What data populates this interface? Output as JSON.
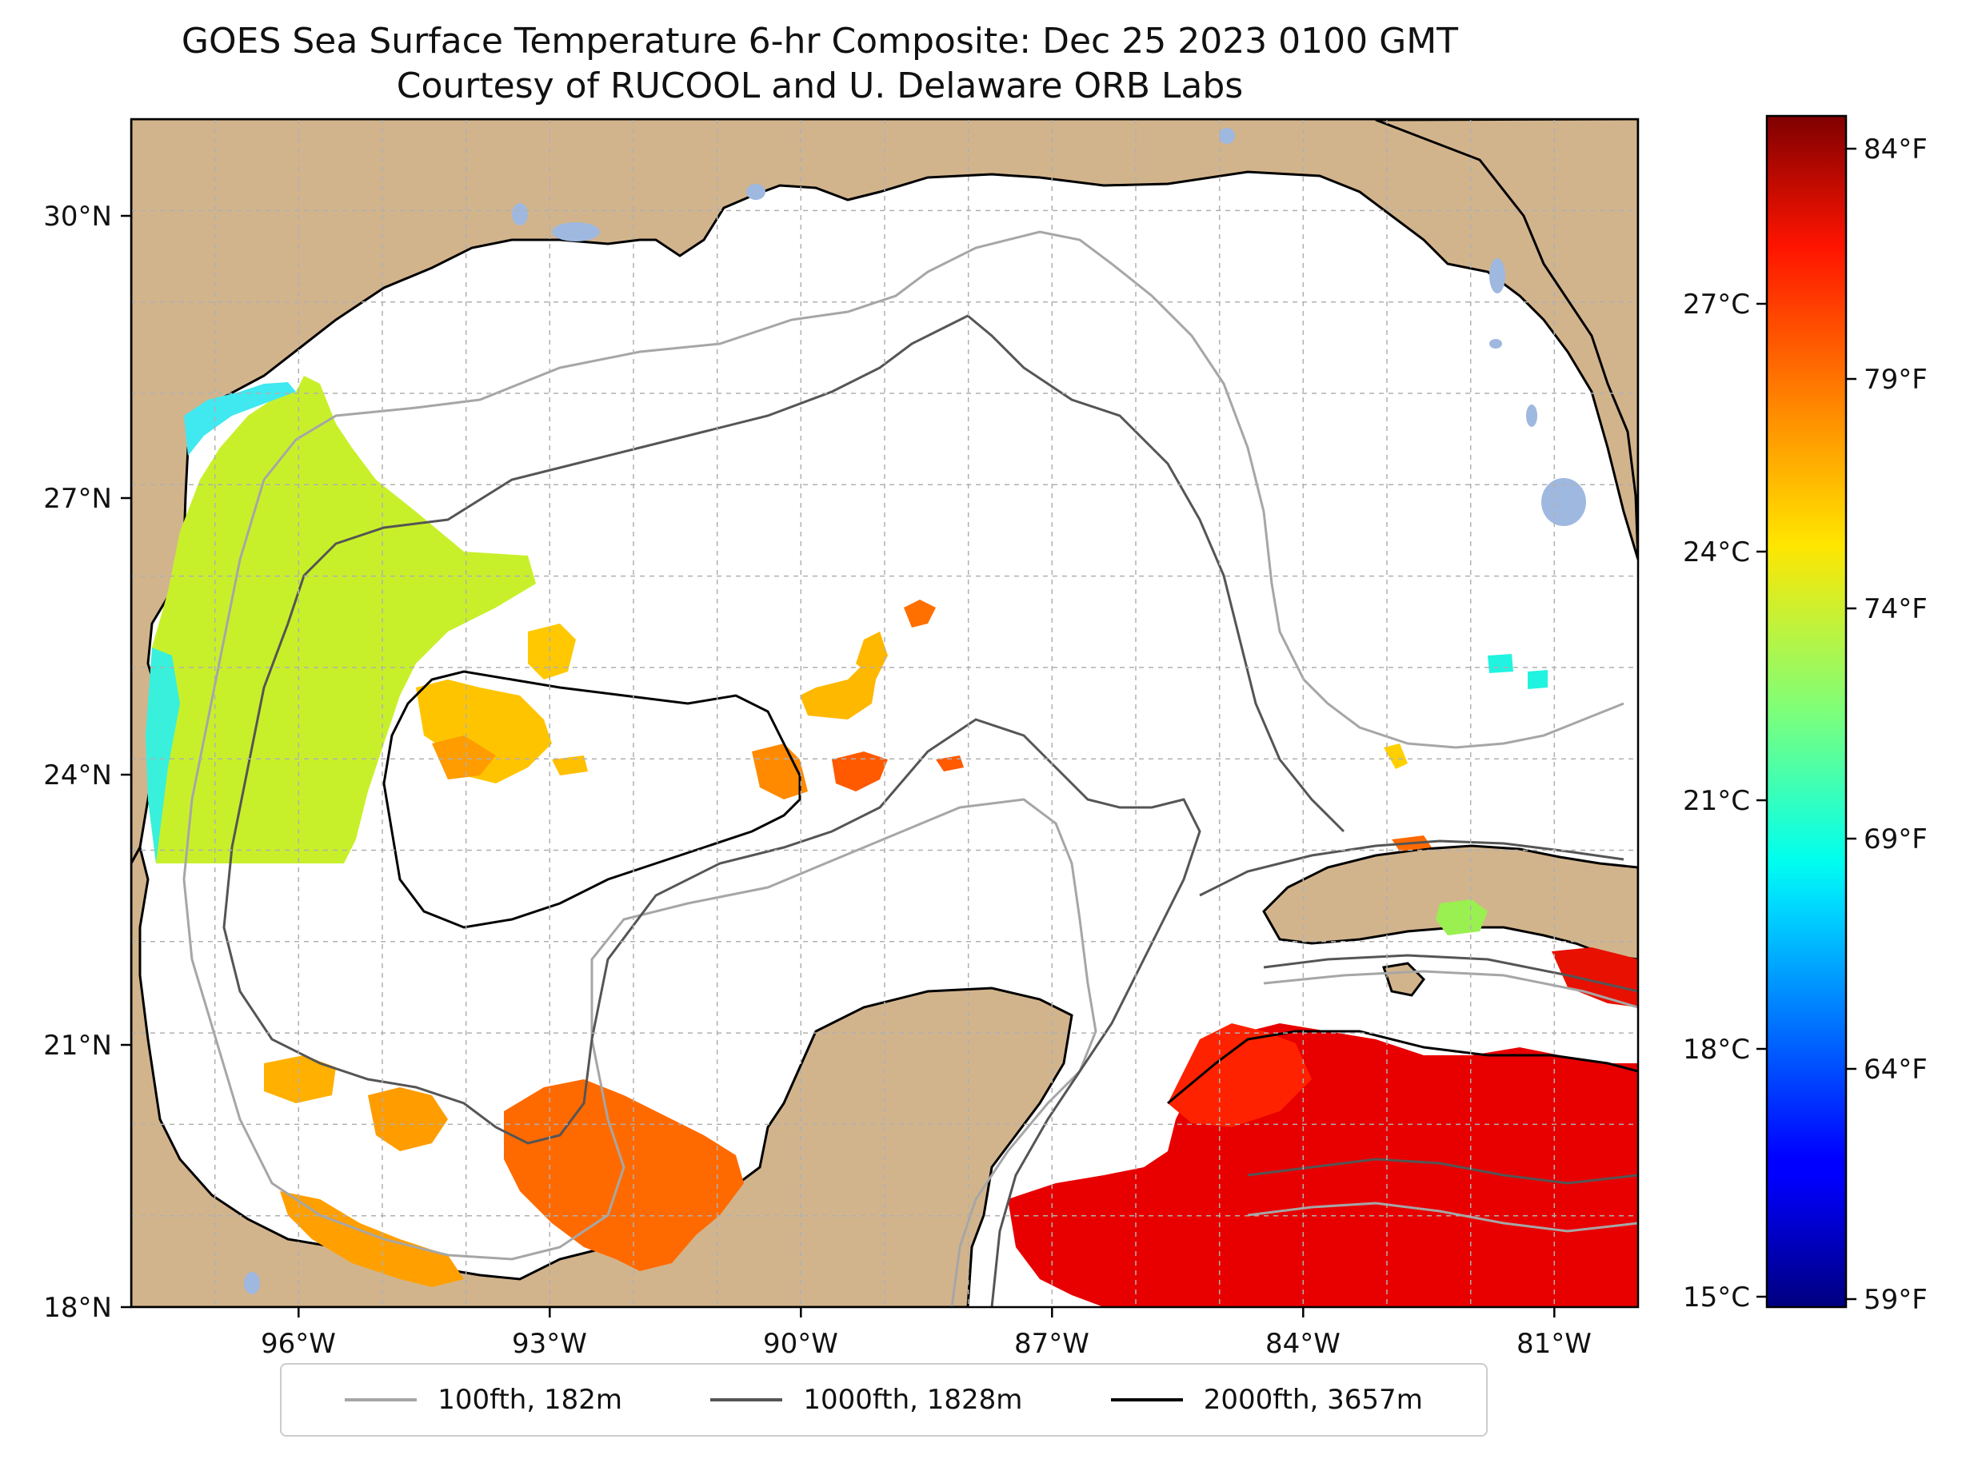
{
  "title": {
    "line1": "GOES Sea Surface Temperature 6-hr Composite: Dec 25 2023 0100 GMT",
    "line2": "Courtesy of RUCOOL and U. Delaware ORB Labs"
  },
  "map": {
    "type": "sea-surface-temperature-map",
    "region": "Gulf of Mexico",
    "lon_range": [
      -98,
      -80
    ],
    "lat_range": [
      18,
      31
    ],
    "lon_ticks": [
      "96°W",
      "93°W",
      "90°W",
      "87°W",
      "84°W",
      "81°W"
    ],
    "lat_ticks": [
      "30°N",
      "27°N",
      "24°N",
      "21°N",
      "18°N"
    ],
    "gridlines": true,
    "colors": {
      "land": "#d2b48c",
      "ocean_no_data": "#ffffff",
      "inland_water": "#9fb8e0",
      "coastline": "#000000"
    }
  },
  "colorbar": {
    "colormap": "jet",
    "celsius_ticks": [
      "27°C",
      "24°C",
      "21°C",
      "18°C",
      "15°C"
    ],
    "fahrenheit_ticks": [
      "84°F",
      "79°F",
      "74°F",
      "69°F",
      "64°F",
      "59°F"
    ],
    "celsius_range": [
      15,
      28.7
    ]
  },
  "legend": {
    "items": [
      {
        "label": "100fth, 182m",
        "color": "#a6a6a6"
      },
      {
        "label": "1000fth, 1828m",
        "color": "#555555"
      },
      {
        "label": "2000fth, 3657m",
        "color": "#000000"
      }
    ]
  }
}
